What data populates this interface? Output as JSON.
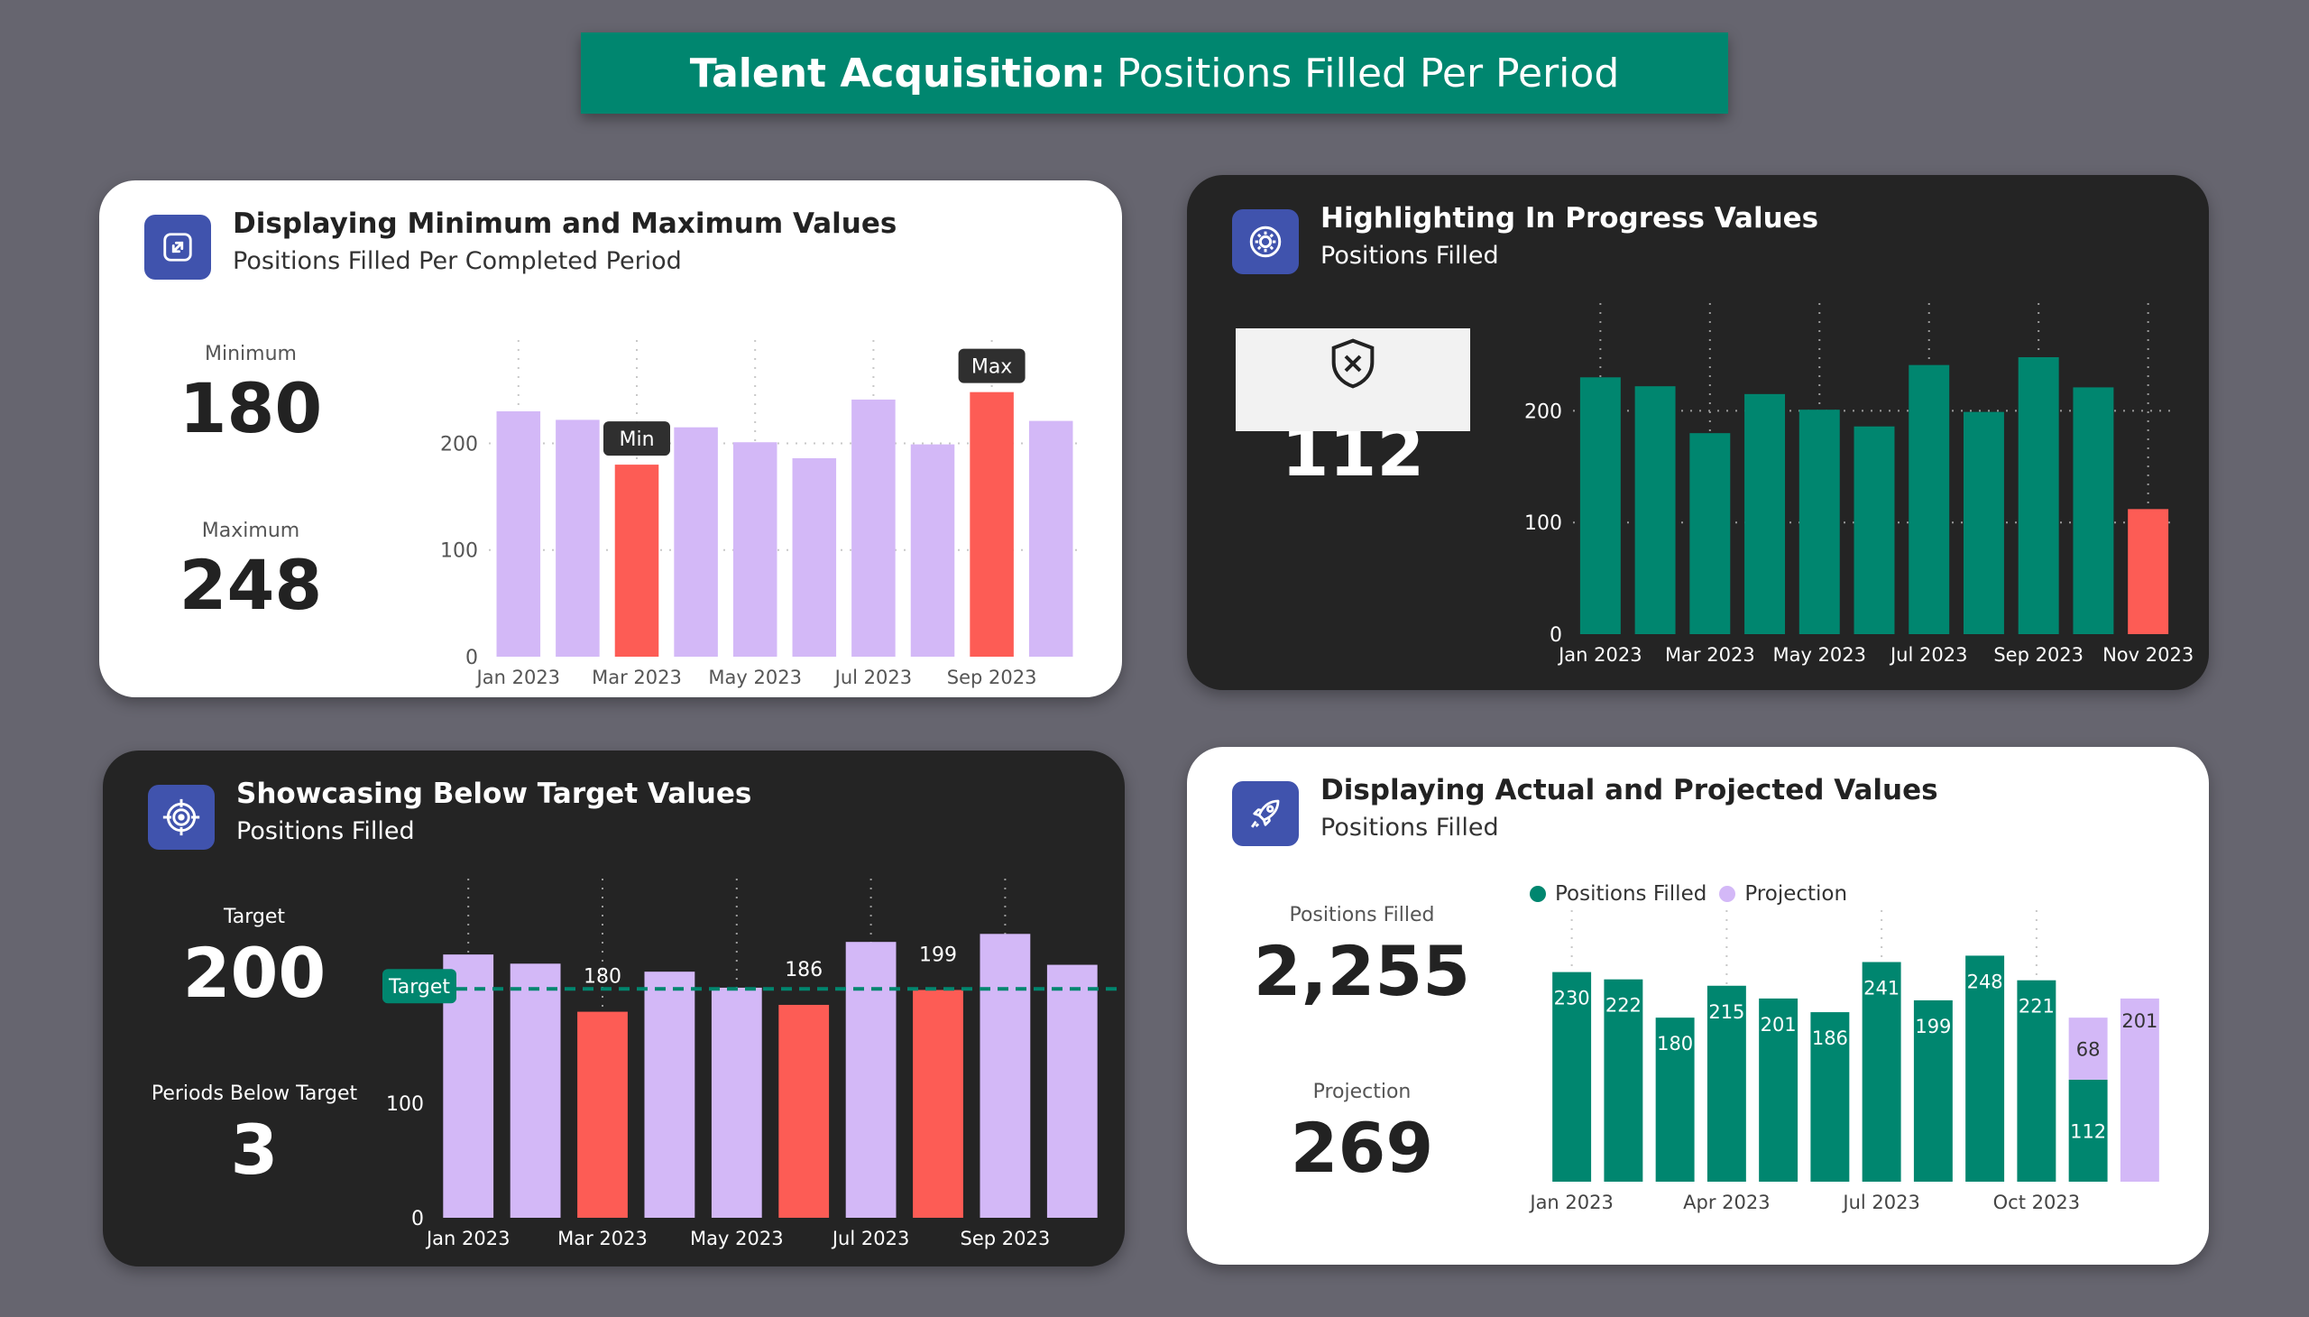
{
  "banner": {
    "bold": "Talent Acquisition:",
    "rest": "Positions Filled Per Period"
  },
  "colors": {
    "teal": "#00866f",
    "lavender": "#d3b8f7",
    "red": "#fd5c55",
    "icon": "#4053ad"
  },
  "panel1": {
    "title": "Displaying Minimum and Maximum Values",
    "subtitle": "Positions Filled Per Completed Period",
    "icon": "expand-arrows-icon",
    "min_label": "Minimum",
    "min_value": "180",
    "max_label": "Maximum",
    "max_value": "248"
  },
  "panel2": {
    "title": "Highlighting In Progress Values",
    "subtitle": "Positions Filled",
    "icon": "gear-refresh-icon",
    "error_icon": "shield-x-icon",
    "kpi_value": "112"
  },
  "panel3": {
    "title": "Showcasing Below Target Values",
    "subtitle": "Positions Filled",
    "icon": "target-crosshair-icon",
    "target_label": "Target",
    "target_value": "200",
    "below_label": "Periods Below Target",
    "below_value": "3"
  },
  "panel4": {
    "title": "Displaying Actual and Projected Values",
    "subtitle": "Positions Filled",
    "icon": "rocket-icon",
    "filled_label": "Positions Filled",
    "filled_value": "2,255",
    "projection_label": "Projection",
    "projection_value": "269",
    "legend_filled": "Positions Filled",
    "legend_projection": "Projection"
  },
  "chart_data": [
    {
      "type": "bar",
      "categories": [
        "Jan 2023",
        "Feb 2023",
        "Mar 2023",
        "Apr 2023",
        "May 2023",
        "Jun 2023",
        "Jul 2023",
        "Aug 2023",
        "Sep 2023",
        "Oct 2023"
      ],
      "values": [
        230,
        222,
        180,
        215,
        201,
        186,
        241,
        199,
        248,
        221
      ],
      "x_tick_labels": [
        "Jan 2023",
        "Mar 2023",
        "May 2023",
        "Jul 2023",
        "Sep 2023"
      ],
      "y_ticks": [
        0,
        100,
        200
      ],
      "ylim": [
        0,
        290
      ],
      "highlight": {
        "min_index": 2,
        "max_index": 8
      },
      "annotations": {
        "min": "Min",
        "max": "Max"
      },
      "grid": false
    },
    {
      "type": "bar",
      "categories": [
        "Jan 2023",
        "Feb 2023",
        "Mar 2023",
        "Apr 2023",
        "May 2023",
        "Jun 2023",
        "Jul 2023",
        "Aug 2023",
        "Sep 2023",
        "Oct 2023",
        "Nov 2023"
      ],
      "values": [
        230,
        222,
        180,
        215,
        201,
        186,
        241,
        199,
        248,
        221,
        112
      ],
      "x_tick_labels": [
        "Jan 2023",
        "Mar 2023",
        "May 2023",
        "Jul 2023",
        "Sep 2023",
        "Nov 2023"
      ],
      "y_ticks": [
        0,
        100,
        200
      ],
      "ylim": [
        0,
        290
      ],
      "highlight": {
        "in_progress_index": 10
      }
    },
    {
      "type": "bar",
      "categories": [
        "Jan 2023",
        "Feb 2023",
        "Mar 2023",
        "Apr 2023",
        "May 2023",
        "Jun 2023",
        "Jul 2023",
        "Aug 2023",
        "Sep 2023",
        "Oct 2023"
      ],
      "values": [
        230,
        222,
        180,
        215,
        201,
        186,
        241,
        199,
        248,
        221
      ],
      "data_labels": {
        "2": "180",
        "5": "186",
        "7": "199"
      },
      "target": 200,
      "target_label": "Target",
      "x_tick_labels": [
        "Jan 2023",
        "Mar 2023",
        "May 2023",
        "Jul 2023",
        "Sep 2023"
      ],
      "y_ticks": [
        0,
        100
      ],
      "ylim": [
        0,
        290
      ]
    },
    {
      "type": "bar",
      "stacked": true,
      "categories": [
        "Jan 2023",
        "Feb 2023",
        "Mar 2023",
        "Apr 2023",
        "May 2023",
        "Jun 2023",
        "Jul 2023",
        "Aug 2023",
        "Sep 2023",
        "Oct 2023",
        "Nov 2023",
        "Dec 2023"
      ],
      "series": [
        {
          "name": "Positions Filled",
          "values": [
            230,
            222,
            180,
            215,
            201,
            186,
            241,
            199,
            248,
            221,
            112,
            null
          ]
        },
        {
          "name": "Projection",
          "values": [
            null,
            null,
            null,
            null,
            null,
            null,
            null,
            null,
            null,
            null,
            68,
            201
          ]
        }
      ],
      "x_tick_labels": [
        "Jan 2023",
        "Apr 2023",
        "Jul 2023",
        "Oct 2023"
      ],
      "ylim": [
        0,
        290
      ],
      "legend": "top-left"
    }
  ]
}
